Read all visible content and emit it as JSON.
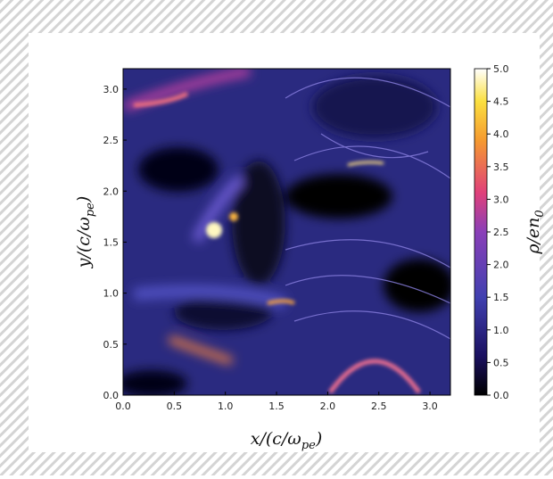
{
  "chart_data": {
    "type": "heatmap",
    "xlabel": [
      "x/(c/ω",
      "pe",
      ")"
    ],
    "ylabel": [
      "y/(c/ω",
      "pe",
      ")"
    ],
    "colorbar_label": [
      "ρ/en",
      "0"
    ],
    "xlim": [
      0,
      3.2
    ],
    "ylim": [
      0,
      3.2
    ],
    "xticks": [
      {
        "value": 0,
        "label": "0.0"
      },
      0.5,
      {
        "value": 1,
        "label": "1.0"
      },
      1.5,
      {
        "value": 2,
        "label": "2.0"
      },
      2.5,
      {
        "value": 3,
        "label": "3.0"
      }
    ],
    "yticks": [
      {
        "value": 0,
        "label": "0.0"
      },
      0.5,
      {
        "value": 1,
        "label": "1.0"
      },
      1.5,
      {
        "value": 2,
        "label": "2.0"
      },
      2.5,
      {
        "value": 3,
        "label": "3.0"
      }
    ],
    "clim": [
      0,
      5
    ],
    "cticks": [
      {
        "value": 0,
        "label": "0.0"
      },
      0.5,
      {
        "value": 1,
        "label": "1.0"
      },
      1.5,
      {
        "value": 2,
        "label": "2.0"
      },
      2.5,
      {
        "value": 3,
        "label": "3.0"
      },
      3.5,
      {
        "value": 4,
        "label": "4.0"
      },
      4.5,
      {
        "value": 5,
        "label": "5.0"
      }
    ]
  }
}
